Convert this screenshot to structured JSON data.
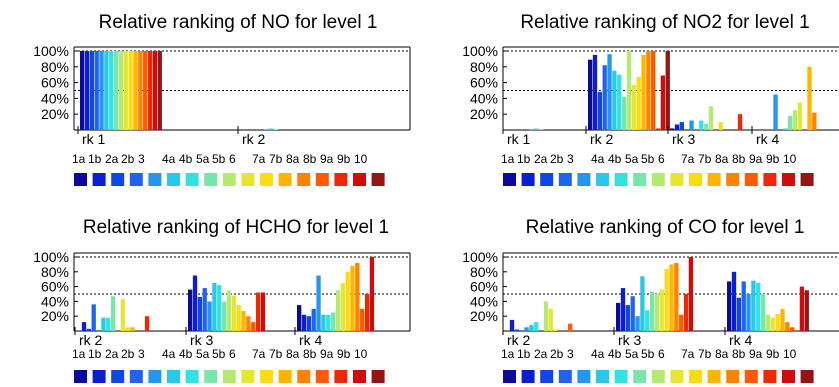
{
  "colors": [
    "#0a0aa0",
    "#0a1ed2",
    "#0f46e6",
    "#1e64f0",
    "#2296f0",
    "#28c8eb",
    "#32e1e1",
    "#78e6aa",
    "#b4eb6e",
    "#e6e632",
    "#fadc14",
    "#ffb400",
    "#ff8200",
    "#ff5a00",
    "#f02800",
    "#d20a0a",
    "#961414"
  ],
  "legend_labels": [
    "1a",
    "1b",
    "2a",
    "2b",
    "3",
    "4a",
    "4b",
    "5a",
    "5b",
    "6",
    "7a",
    "7b",
    "8a",
    "8b",
    "9a",
    "9b",
    "10"
  ],
  "chart_data": [
    {
      "type": "bar",
      "title": "Relative ranking of NO for level 1",
      "yticks": [
        "100%",
        "80%",
        "60%",
        "40%",
        "20%"
      ],
      "ylim": [
        0,
        100
      ],
      "groups": [
        "rk 1",
        "rk 2"
      ],
      "series_names": [
        "1a",
        "1b",
        "2a",
        "2b",
        "3",
        "4a",
        "4b",
        "5a",
        "5b",
        "6",
        "7a",
        "7b",
        "8a",
        "8b",
        "9a",
        "9b",
        "10"
      ],
      "values": [
        [
          100,
          100,
          100,
          100,
          100,
          100,
          100,
          100,
          100,
          100,
          100,
          100,
          100,
          100,
          100,
          100,
          100
        ],
        [
          0,
          0,
          0,
          0,
          0,
          1,
          2,
          1,
          0,
          0,
          0,
          0,
          0,
          0,
          0,
          0,
          0
        ]
      ]
    },
    {
      "type": "bar",
      "title": "Relative ranking of NO2 for level 1",
      "yticks": [
        "100%",
        "80%",
        "60%",
        "40%",
        "20%"
      ],
      "ylim": [
        0,
        100
      ],
      "groups": [
        "rk 1",
        "rk 2",
        "rk 3",
        "rk 4"
      ],
      "series_names": [
        "1a",
        "1b",
        "2a",
        "2b",
        "3",
        "4a",
        "4b",
        "5a",
        "5b",
        "6",
        "7a",
        "7b",
        "8a",
        "8b",
        "9a",
        "9b",
        "10"
      ],
      "values": [
        [
          0,
          0,
          0,
          0,
          0,
          1,
          2,
          1,
          0,
          0,
          0,
          0,
          0,
          0,
          0,
          0,
          0
        ],
        [
          89,
          95,
          48,
          82,
          96,
          75,
          70,
          42,
          100,
          57,
          67,
          95,
          100,
          100,
          2,
          69,
          100
        ],
        [
          2,
          7,
          10,
          0,
          12,
          0,
          12,
          8,
          30,
          0,
          10,
          0,
          0,
          0,
          20,
          0,
          0
        ],
        [
          0,
          0,
          0,
          0,
          45,
          0,
          2,
          18,
          25,
          35,
          0,
          80,
          22,
          0,
          0,
          0,
          0
        ]
      ]
    },
    {
      "type": "bar",
      "title": "Relative ranking of HCHO for level 1",
      "yticks": [
        "100%",
        "80%",
        "60%",
        "40%",
        "20%"
      ],
      "ylim": [
        0,
        100
      ],
      "groups": [
        "rk 2",
        "rk 3",
        "rk 4"
      ],
      "series_names": [
        "1a",
        "1b",
        "2a",
        "2b",
        "3",
        "4a",
        "4b",
        "5a",
        "5b",
        "6",
        "7a",
        "7b",
        "8a",
        "8b",
        "9a",
        "9b",
        "10"
      ],
      "values": [
        [
          0,
          12,
          3,
          36,
          0,
          18,
          18,
          47,
          0,
          43,
          5,
          5,
          0,
          0,
          20,
          0,
          0
        ],
        [
          56,
          75,
          46,
          58,
          40,
          65,
          62,
          40,
          55,
          48,
          35,
          27,
          20,
          12,
          52,
          52,
          0
        ],
        [
          35,
          22,
          20,
          30,
          75,
          22,
          22,
          25,
          55,
          65,
          80,
          88,
          92,
          30,
          50,
          100,
          0
        ]
      ]
    },
    {
      "type": "bar",
      "title": "Relative ranking of CO for level 1",
      "yticks": [
        "100%",
        "80%",
        "60%",
        "40%",
        "20%"
      ],
      "ylim": [
        0,
        100
      ],
      "groups": [
        "rk 2",
        "rk 3",
        "rk 4"
      ],
      "series_names": [
        "1a",
        "1b",
        "2a",
        "2b",
        "3",
        "4a",
        "4b",
        "5a",
        "5b",
        "6",
        "7a",
        "7b",
        "8a",
        "8b",
        "9a",
        "9b",
        "10"
      ],
      "values": [
        [
          0,
          15,
          2,
          0,
          5,
          8,
          12,
          0,
          40,
          30,
          2,
          0,
          0,
          10,
          0,
          0,
          0
        ],
        [
          38,
          58,
          35,
          47,
          20,
          74,
          28,
          53,
          50,
          56,
          84,
          90,
          92,
          22,
          50,
          100,
          0
        ],
        [
          67,
          80,
          45,
          67,
          50,
          68,
          65,
          50,
          22,
          18,
          23,
          30,
          12,
          5,
          0,
          60,
          55
        ]
      ]
    }
  ]
}
